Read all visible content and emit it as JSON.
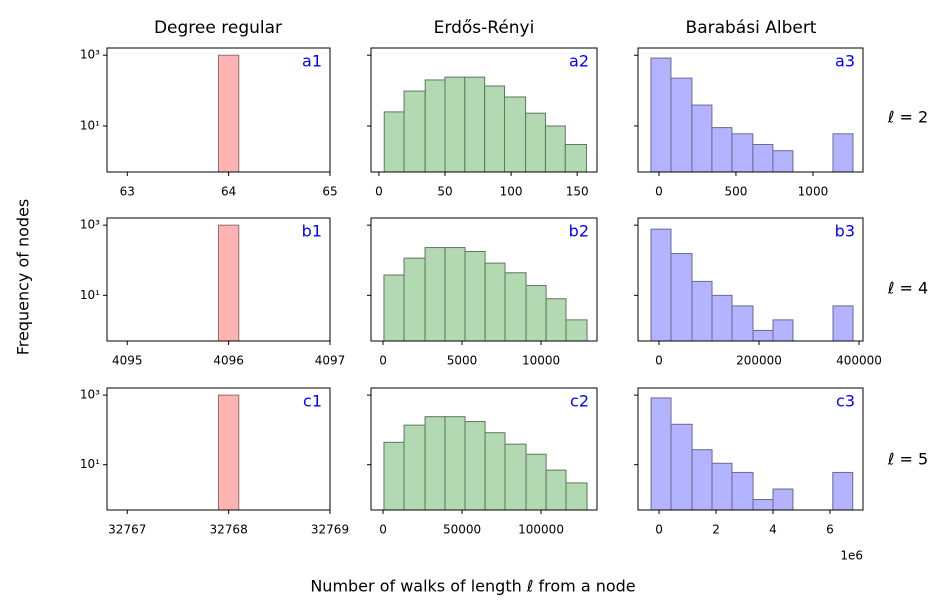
{
  "figure": {
    "column_titles": [
      "Degree regular",
      "Erdős-Rényi",
      "Barabási Albert"
    ],
    "row_labels": [
      "ℓ = 2",
      "ℓ = 4",
      "ℓ = 5"
    ],
    "ylabel": "Frequency of nodes",
    "xlabel": "Number of walks of length ℓ from a node"
  },
  "chart_data": [
    {
      "type": "histogram",
      "label": "a1",
      "color": "#ffb3b3",
      "edgecolor": "#8c6f6f",
      "bins": [
        63.9,
        64.1
      ],
      "values": [
        1000
      ],
      "xlim": [
        62.8,
        65
      ],
      "xticks": [
        63,
        64,
        65
      ],
      "ylog": true,
      "ylim": [
        0.5,
        1600
      ],
      "ytick_labels": true,
      "yticks": [
        {
          "value": 1000,
          "label": "10³"
        },
        {
          "value": 10,
          "label": "10¹"
        }
      ]
    },
    {
      "type": "histogram",
      "label": "a2",
      "color": "#b3d9b3",
      "edgecolor": "#607560",
      "bins": [
        4,
        19,
        35,
        50,
        65,
        80,
        95,
        111,
        126,
        141,
        157
      ],
      "values": [
        25,
        97,
        200,
        240,
        240,
        135,
        66,
        23,
        10,
        3
      ],
      "xlim": [
        -6,
        165
      ],
      "xticks": [
        0,
        50,
        100,
        150
      ],
      "ylog": true,
      "ylim": [
        0.5,
        1600
      ],
      "ytick_labels": false,
      "yticks": [
        1000,
        10
      ]
    },
    {
      "type": "histogram",
      "label": "a3",
      "color": "#b3b3ff",
      "edgecolor": "#6a6a90",
      "bins": [
        -52,
        78,
        214,
        344,
        474,
        610,
        740,
        870,
        1000,
        1130,
        1260
      ],
      "values": [
        830,
        225,
        39,
        9,
        6,
        3,
        2,
        0,
        0,
        6
      ],
      "xlim": [
        -136,
        1325
      ],
      "xticks": [
        0,
        500,
        1000
      ],
      "ylog": true,
      "ylim": [
        0.5,
        1600
      ],
      "ytick_labels": false,
      "yticks": [
        1000,
        10
      ]
    },
    {
      "type": "histogram",
      "label": "b1",
      "color": "#ffb3b3",
      "edgecolor": "#8c6f6f",
      "bins": [
        4095.9,
        4096.1
      ],
      "values": [
        1000
      ],
      "xlim": [
        4094.8,
        4097
      ],
      "xticks": [
        4095,
        4096,
        4097
      ],
      "ylog": true,
      "ylim": [
        0.5,
        1600
      ],
      "ytick_labels": true,
      "yticks": [
        {
          "value": 1000,
          "label": "10³"
        },
        {
          "value": 10,
          "label": "10¹"
        }
      ]
    },
    {
      "type": "histogram",
      "label": "b2",
      "color": "#b3d9b3",
      "edgecolor": "#607560",
      "bins": [
        60,
        1330,
        2660,
        3920,
        5190,
        6460,
        7720,
        9050,
        10320,
        11580,
        12910
      ],
      "values": [
        38,
        115,
        230,
        230,
        178,
        83,
        44,
        19,
        8,
        2
      ],
      "xlim": [
        -760,
        13540
      ],
      "xticks": [
        0,
        5000,
        10000
      ],
      "ylog": true,
      "ylim": [
        0.5,
        1600
      ],
      "ytick_labels": false,
      "yticks": [
        1000,
        10
      ]
    },
    {
      "type": "histogram",
      "label": "b3",
      "color": "#b3b3ff",
      "edgecolor": "#6a6a90",
      "bins": [
        -16000,
        24000,
        66000,
        106000,
        146000,
        188000,
        228000,
        268000,
        308000,
        348000,
        388000
      ],
      "values": [
        770,
        155,
        25,
        10,
        5,
        1,
        2,
        0,
        0,
        5
      ],
      "xlim": [
        -42000,
        408000
      ],
      "xticks": [
        0,
        200000,
        400000
      ],
      "ylog": true,
      "ylim": [
        0.5,
        1600
      ],
      "ytick_labels": false,
      "yticks": [
        1000,
        10
      ]
    },
    {
      "type": "histogram",
      "label": "c1",
      "color": "#ffb3b3",
      "edgecolor": "#8c6f6f",
      "bins": [
        32767.9,
        32768.1
      ],
      "values": [
        1000
      ],
      "xlim": [
        32766.8,
        32769
      ],
      "xticks": [
        32767,
        32768,
        32769
      ],
      "ylog": true,
      "ylim": [
        0.5,
        1600
      ],
      "ytick_labels": true,
      "yticks": [
        {
          "value": 1000,
          "label": "10³"
        },
        {
          "value": 10,
          "label": "10¹"
        }
      ]
    },
    {
      "type": "histogram",
      "label": "c2",
      "color": "#b3d9b3",
      "edgecolor": "#607560",
      "bins": [
        600,
        13300,
        26600,
        39200,
        51900,
        64600,
        77200,
        90500,
        103200,
        115800,
        129100
      ],
      "values": [
        44,
        137,
        240,
        240,
        174,
        83,
        39,
        20,
        7,
        3
      ],
      "xlim": [
        -7600,
        135400
      ],
      "xticks": [
        0,
        50000,
        100000
      ],
      "ylog": true,
      "ylim": [
        0.5,
        1600
      ],
      "ytick_labels": false,
      "yticks": [
        1000,
        10
      ]
    },
    {
      "type": "histogram",
      "label": "c3",
      "color": "#b3b3ff",
      "edgecolor": "#6a6a90",
      "bins": [
        -0.28,
        0.42,
        1.16,
        1.86,
        2.56,
        3.3,
        4.0,
        4.7,
        5.4,
        6.1,
        6.8
      ],
      "values": [
        830,
        145,
        27,
        11,
        6,
        1,
        2,
        0,
        0,
        6
      ],
      "xlim": [
        -0.74,
        7.16
      ],
      "xticks": [
        0,
        2,
        4,
        6
      ],
      "offset_text": "1e6",
      "ylog": true,
      "ylim": [
        0.5,
        1600
      ],
      "ytick_labels": false,
      "yticks": [
        1000,
        10
      ]
    }
  ]
}
